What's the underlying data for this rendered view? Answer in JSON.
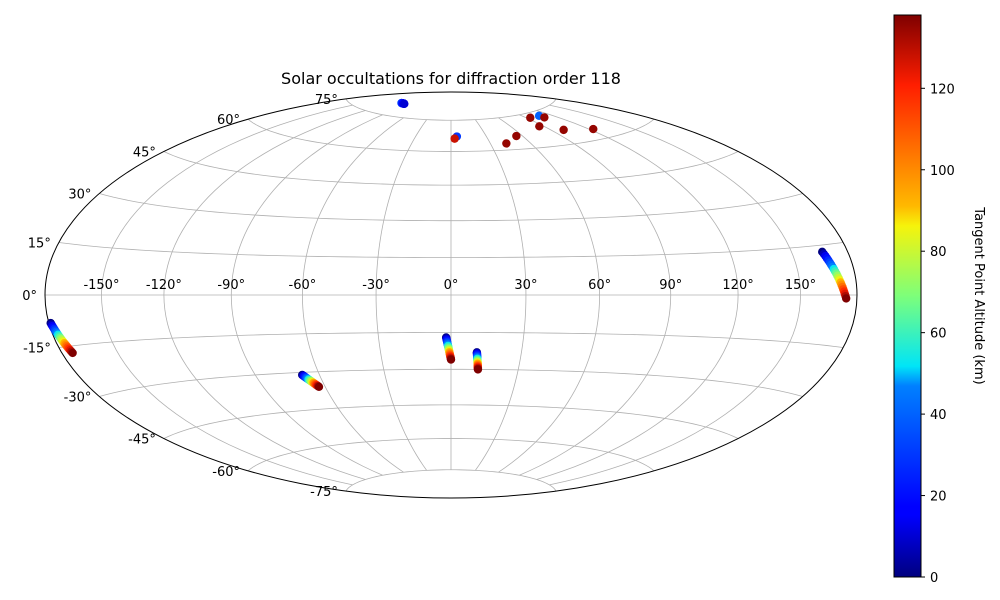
{
  "chart_data": {
    "type": "scatter",
    "projection": "hammer",
    "title": "Solar occultations for diffraction order 118",
    "lon_ticks": [
      "-150°",
      "-120°",
      "-90°",
      "-60°",
      "-30°",
      "0°",
      "30°",
      "60°",
      "90°",
      "120°",
      "150°"
    ],
    "lat_ticks": [
      "-75°",
      "-60°",
      "-45°",
      "-30°",
      "-15°",
      "0°",
      "15°",
      "30°",
      "45°",
      "60°",
      "75°"
    ],
    "lon_tick_values": [
      -150,
      -120,
      -90,
      -60,
      -30,
      0,
      30,
      60,
      90,
      120,
      150
    ],
    "lat_tick_values": [
      -75,
      -60,
      -45,
      -30,
      -15,
      0,
      15,
      30,
      45,
      60,
      75
    ],
    "grid": true,
    "colorbar": {
      "label": "Tangent Point Altitude (km)",
      "range": [
        0,
        138
      ],
      "ticks": [
        0,
        20,
        40,
        60,
        80,
        100,
        120
      ],
      "tick_labels": [
        "0",
        "20",
        "40",
        "60",
        "80",
        "100",
        "120"
      ],
      "colormap": "jet"
    },
    "series": [
      {
        "lon_start": -179,
        "lat_start": -8,
        "lon_end": -174,
        "lat_end": -17,
        "alt_start": 0,
        "alt_end": 138
      },
      {
        "lon_start": -68,
        "lat_start": -31,
        "lon_end": -63,
        "lat_end": -36,
        "alt_start": 0,
        "alt_end": 138
      },
      {
        "lon_start": -2,
        "lat_start": -17,
        "lon_end": 0,
        "lat_end": -26,
        "alt_start": 0,
        "alt_end": 138
      },
      {
        "lon_start": 11,
        "lat_start": -23,
        "lon_end": 12,
        "lat_end": -30,
        "alt_start": 0,
        "alt_end": 138
      },
      {
        "lon_start": 166,
        "lat_start": 13,
        "lon_end": 174,
        "lat_end": -1,
        "alt_start": 0,
        "alt_end": 138
      },
      {
        "lon_start": -109,
        "lat_start": 81,
        "lon_end": -101,
        "lat_end": 81,
        "alt_start": 35,
        "alt_end": 10
      },
      {
        "lon_start": 5,
        "lat_start": 67,
        "lon_end": 5,
        "lat_end": 67,
        "alt_start": 30,
        "alt_end": 30
      },
      {
        "lon_start": 3,
        "lat_start": 66,
        "lon_end": 3,
        "lat_end": 66,
        "alt_start": 128,
        "alt_end": 128
      },
      {
        "lon_start": 42,
        "lat_start": 63,
        "lon_end": 42,
        "lat_end": 63,
        "alt_start": 135,
        "alt_end": 135
      },
      {
        "lon_start": 55,
        "lat_start": 66,
        "lon_end": 55,
        "lat_end": 66,
        "alt_start": 135,
        "alt_end": 135
      },
      {
        "lon_start": 86,
        "lat_start": 69,
        "lon_end": 86,
        "lat_end": 69,
        "alt_start": 135,
        "alt_end": 135
      },
      {
        "lon_start": 94,
        "lat_start": 73,
        "lon_end": 94,
        "lat_end": 73,
        "alt_start": 135,
        "alt_end": 135
      },
      {
        "lon_start": 107,
        "lat_start": 73,
        "lon_end": 107,
        "lat_end": 73,
        "alt_start": 40,
        "alt_end": 40
      },
      {
        "lon_start": 108,
        "lat_start": 72,
        "lon_end": 108,
        "lat_end": 72,
        "alt_start": 135,
        "alt_end": 135
      },
      {
        "lon_start": 100,
        "lat_start": 66,
        "lon_end": 100,
        "lat_end": 66,
        "alt_start": 135,
        "alt_end": 135
      },
      {
        "lon_start": 123,
        "lat_start": 64,
        "lon_end": 123,
        "lat_end": 64,
        "alt_start": 135,
        "alt_end": 135
      }
    ]
  }
}
